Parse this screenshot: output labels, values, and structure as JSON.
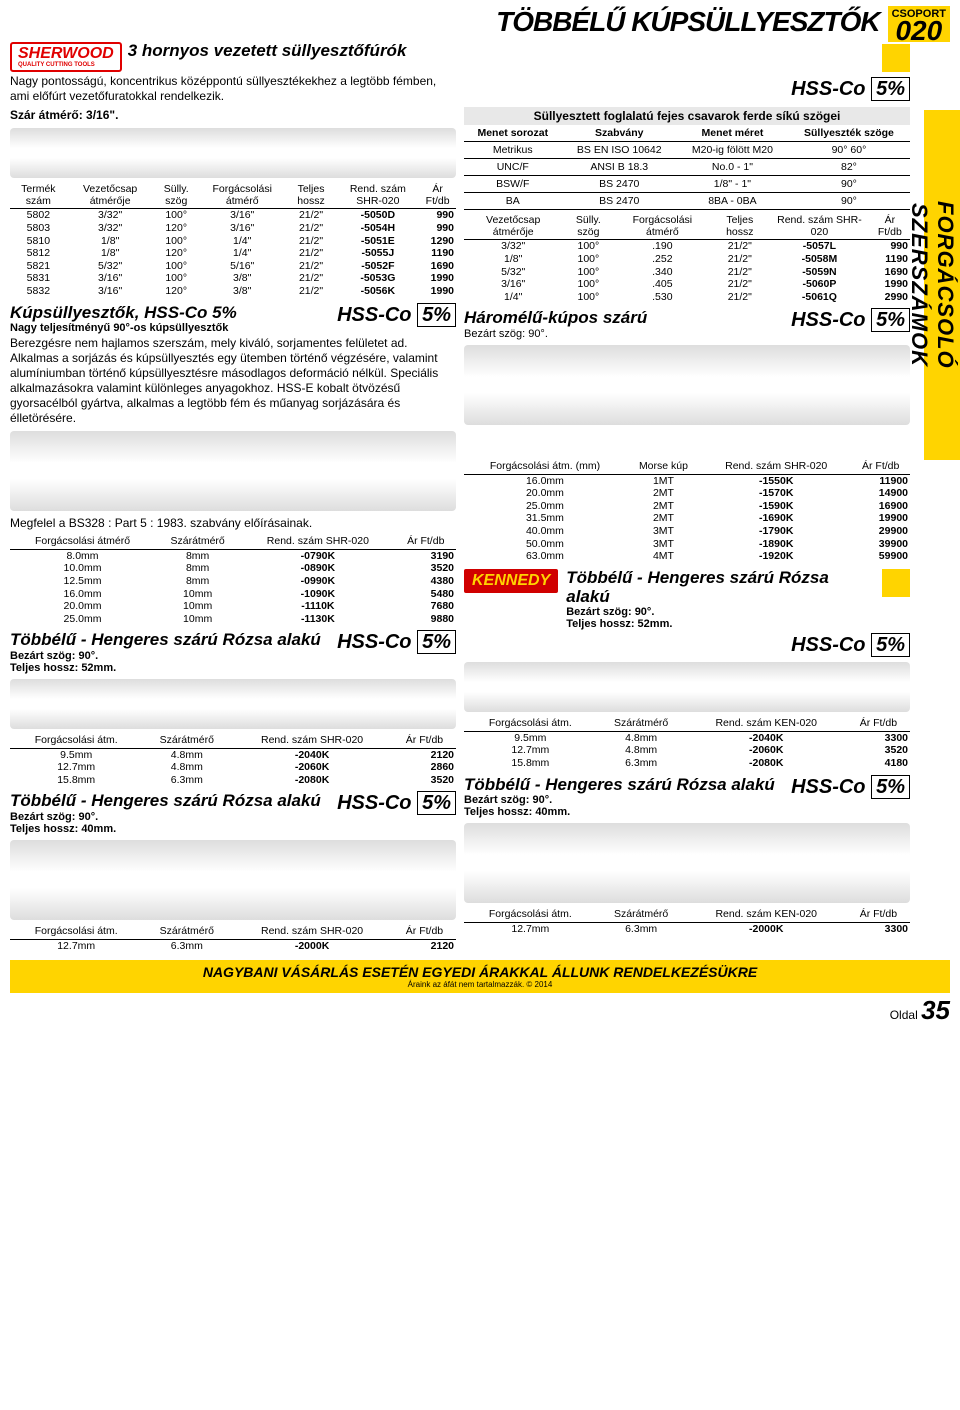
{
  "header": {
    "group_label": "CSOPORT",
    "group_num": "020",
    "title": "TÖBBÉLŰ KÚPSÜLLYESZTŐK",
    "side_tab": "FORGÁCSOLÓ SZERSZÁMOK"
  },
  "brand": {
    "sherwood": "SHERWOOD",
    "sherwood_sub": "QUALITY CUTTING TOOLS",
    "kennedy": "KENNEDY"
  },
  "hss": {
    "label": "HSS-Co",
    "pct": "5%"
  },
  "s1": {
    "title": "3 hornyos vezetett süllyesztőfúrók",
    "desc": "Nagy pontosságú, koncentrikus középpontú süllyesztékekhez a legtöbb fémben, ami előfúrt vezetőfuratokkal rendelkezik.",
    "shaft": "Szár átmérő: 3/16\".",
    "t1_head": [
      "Termék szám",
      "Vezetőcsap átmérője",
      "Sülly. szög",
      "Forgácsolási átmérő",
      "Teljes hossz",
      "Rend. szám SHR-020",
      "Ár Ft/db"
    ],
    "t1_rows": [
      [
        "5802",
        "3/32\"",
        "100°",
        "3/16\"",
        "21/2\"",
        "-5050D",
        "990"
      ],
      [
        "5803",
        "3/32\"",
        "120°",
        "3/16\"",
        "21/2\"",
        "-5054H",
        "990"
      ],
      [
        "5810",
        "1/8\"",
        "100°",
        "1/4\"",
        "21/2\"",
        "-5051E",
        "1290"
      ],
      [
        "5812",
        "1/8\"",
        "120°",
        "1/4\"",
        "21/2\"",
        "-5055J",
        "1190"
      ],
      [
        "5821",
        "5/32\"",
        "100°",
        "5/16\"",
        "21/2\"",
        "-5052F",
        "1690"
      ],
      [
        "5831",
        "3/16\"",
        "100°",
        "3/8\"",
        "21/2\"",
        "-5053G",
        "1990"
      ],
      [
        "5832",
        "3/16\"",
        "120°",
        "3/8\"",
        "21/2\"",
        "-5056K",
        "1990"
      ]
    ]
  },
  "angle_table": {
    "title": "Süllyesztett foglalatú fejes csavarok ferde síkú szögei",
    "head": [
      "Menet sorozat",
      "Szabvány",
      "Menet méret",
      "Süllyeszték szöge"
    ],
    "rows": [
      [
        "Metrikus",
        "BS EN ISO 10642",
        "M20-ig fölött M20",
        "90° 60°"
      ],
      [
        "UNC/F",
        "ANSI B 18.3",
        "No.0 - 1\"",
        "82°"
      ],
      [
        "BSW/F",
        "BS 2470",
        "1/8\" - 1\"",
        "90°"
      ],
      [
        "BA",
        "BS 2470",
        "8BA - 0BA",
        "90°"
      ]
    ]
  },
  "t2_head": [
    "Vezetőcsap átmérője",
    "Sülly. szög",
    "Forgácsolási átmérő",
    "Teljes hossz",
    "Rend. szám SHR-020",
    "Ár Ft/db"
  ],
  "t2_rows": [
    [
      "3/32\"",
      "100°",
      ".190",
      "21/2\"",
      "-5057L",
      "990"
    ],
    [
      "1/8\"",
      "100°",
      ".252",
      "21/2\"",
      "-5058M",
      "1190"
    ],
    [
      "5/32\"",
      "100°",
      ".340",
      "21/2\"",
      "-5059N",
      "1690"
    ],
    [
      "3/16\"",
      "100°",
      ".405",
      "21/2\"",
      "-5060P",
      "1990"
    ],
    [
      "1/4\"",
      "100°",
      ".530",
      "21/2\"",
      "-5061Q",
      "2990"
    ]
  ],
  "s2": {
    "title": "Kúpsüllyesztők, HSS-Co 5%",
    "sub": "Nagy teljesítményű 90°-os kúpsüllyesztők",
    "desc": "Berezgésre nem hajlamos szerszám, mely kiváló, sorjamentes felületet ad. Alkalmas a sorjázás és kúpsüllyesztés egy ütemben történő végzésére, valamint alumíniumban történő kúpsüllyesztésre másodlagos deformáció nélkül. Speciális alkalmazásokra valamint különleges anyagokhoz. HSS-E kobalt ötvözésű gyorsacélból gyártva, alkalmas a legtöbb fém és műanyag sorjázására és élletörésére.",
    "conforms": "Megfelel a BS328 : Part 5 : 1983. szabvány előírásainak."
  },
  "s3": {
    "title": "Háromélű-kúpos szárú",
    "sub": "Bezárt szög: 90°."
  },
  "t3_head": [
    "Forgácsolási átmérő",
    "Szárátmérő",
    "Rend. szám SHR-020",
    "Ár Ft/db"
  ],
  "t3_rows": [
    [
      "8.0mm",
      "8mm",
      "-0790K",
      "3190"
    ],
    [
      "10.0mm",
      "8mm",
      "-0890K",
      "3520"
    ],
    [
      "12.5mm",
      "8mm",
      "-0990K",
      "4380"
    ],
    [
      "16.0mm",
      "10mm",
      "-1090K",
      "5480"
    ],
    [
      "20.0mm",
      "10mm",
      "-1110K",
      "7680"
    ],
    [
      "25.0mm",
      "10mm",
      "-1130K",
      "9880"
    ]
  ],
  "t4_head": [
    "Forgácsolási átm. (mm)",
    "Morse kúp",
    "Rend. szám SHR-020",
    "Ár Ft/db"
  ],
  "t4_rows": [
    [
      "16.0mm",
      "1MT",
      "-1550K",
      "11900"
    ],
    [
      "20.0mm",
      "2MT",
      "-1570K",
      "14900"
    ],
    [
      "25.0mm",
      "2MT",
      "-1590K",
      "16900"
    ],
    [
      "31.5mm",
      "2MT",
      "-1690K",
      "19900"
    ],
    [
      "40.0mm",
      "3MT",
      "-1790K",
      "29900"
    ],
    [
      "50.0mm",
      "3MT",
      "-1890K",
      "39900"
    ],
    [
      "63.0mm",
      "4MT",
      "-1920K",
      "59900"
    ]
  ],
  "s4": {
    "title": "Többélű - Hengeres szárú Rózsa alakú",
    "sub1": "Bezárt szög: 90°.",
    "sub2": "Teljes hossz: 52mm."
  },
  "t5_head": [
    "Forgácsolási átm.",
    "Szárátmérő",
    "Rend. szám SHR-020",
    "Ár Ft/db"
  ],
  "t5_rows": [
    [
      "9.5mm",
      "4.8mm",
      "-2040K",
      "2120"
    ],
    [
      "12.7mm",
      "4.8mm",
      "-2060K",
      "2860"
    ],
    [
      "15.8mm",
      "6.3mm",
      "-2080K",
      "3520"
    ]
  ],
  "s5": {
    "title": "Többélű - Hengeres szárú Rózsa alakú",
    "sub1": "Bezárt szög: 90°.",
    "sub2": "Teljes hossz: 52mm."
  },
  "t6_head": [
    "Forgácsolási átm.",
    "Szárátmérő",
    "Rend. szám KEN-020",
    "Ár Ft/db"
  ],
  "t6_rows": [
    [
      "9.5mm",
      "4.8mm",
      "-2040K",
      "3300"
    ],
    [
      "12.7mm",
      "4.8mm",
      "-2060K",
      "3520"
    ],
    [
      "15.8mm",
      "6.3mm",
      "-2080K",
      "4180"
    ]
  ],
  "s6": {
    "title": "Többélű - Hengeres szárú Rózsa alakú",
    "sub1": "Bezárt szög: 90°.",
    "sub2": "Teljes hossz: 40mm."
  },
  "t7_rows": [
    [
      "12.7mm",
      "6.3mm",
      "-2000K",
      "2120"
    ]
  ],
  "s7": {
    "title": "Többélű - Hengeres szárú Rózsa alakú",
    "sub1": "Bezárt szög: 90°.",
    "sub2": "Teljes hossz: 40mm."
  },
  "t8_rows": [
    [
      "12.7mm",
      "6.3mm",
      "-2000K",
      "3300"
    ]
  ],
  "footer": {
    "line1": "NAGYBANI VÁSÁRLÁS ESETÉN EGYEDI ÁRAKKAL ÁLLUNK RENDELKEZÉSÜKRE",
    "line2": "Áraink az áfát nem tartalmazzák. © 2014",
    "page_lbl": "Oldal",
    "page_num": "35"
  }
}
